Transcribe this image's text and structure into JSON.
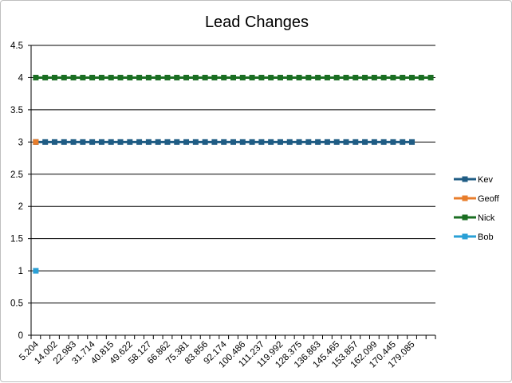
{
  "chart_data": {
    "type": "line",
    "title": "Lead Changes",
    "xlabel": "",
    "ylabel": "",
    "ylim": [
      0,
      4.5
    ],
    "y_ticks": [
      "0",
      "0.5",
      "1",
      "1.5",
      "2",
      "2.5",
      "3",
      "3.5",
      "4",
      "4.5"
    ],
    "grid": true,
    "legend_position": "right",
    "x_tick_labels": [
      "5.204",
      "14.002",
      "22.983",
      "31.714",
      "40.815",
      "49.622",
      "58.127",
      "66.862",
      "75.381",
      "83.856",
      "92.174",
      "100.486",
      "111.237",
      "119.992",
      "128.375",
      "136.863",
      "145.465",
      "153.857",
      "162.099",
      "170.445",
      "179.085"
    ],
    "x_category_count": 43,
    "series": [
      {
        "name": "Kev",
        "color": "#1f5c84",
        "values": [
          3,
          3,
          3,
          3,
          3,
          3,
          3,
          3,
          3,
          3,
          3,
          3,
          3,
          3,
          3,
          3,
          3,
          3,
          3,
          3,
          3,
          3,
          3,
          3,
          3,
          3,
          3,
          3,
          3,
          3,
          3,
          3,
          3,
          3,
          3,
          3,
          3,
          3,
          3,
          3,
          3
        ]
      },
      {
        "name": "Geoff",
        "color": "#e87d2b",
        "values": [
          3
        ]
      },
      {
        "name": "Nick",
        "color": "#1a6e22",
        "values": [
          4,
          4,
          4,
          4,
          4,
          4,
          4,
          4,
          4,
          4,
          4,
          4,
          4,
          4,
          4,
          4,
          4,
          4,
          4,
          4,
          4,
          4,
          4,
          4,
          4,
          4,
          4,
          4,
          4,
          4,
          4,
          4,
          4,
          4,
          4,
          4,
          4,
          4,
          4,
          4,
          4,
          4,
          4
        ]
      },
      {
        "name": "Bob",
        "color": "#2aa0d6",
        "values": [
          1
        ]
      }
    ]
  }
}
